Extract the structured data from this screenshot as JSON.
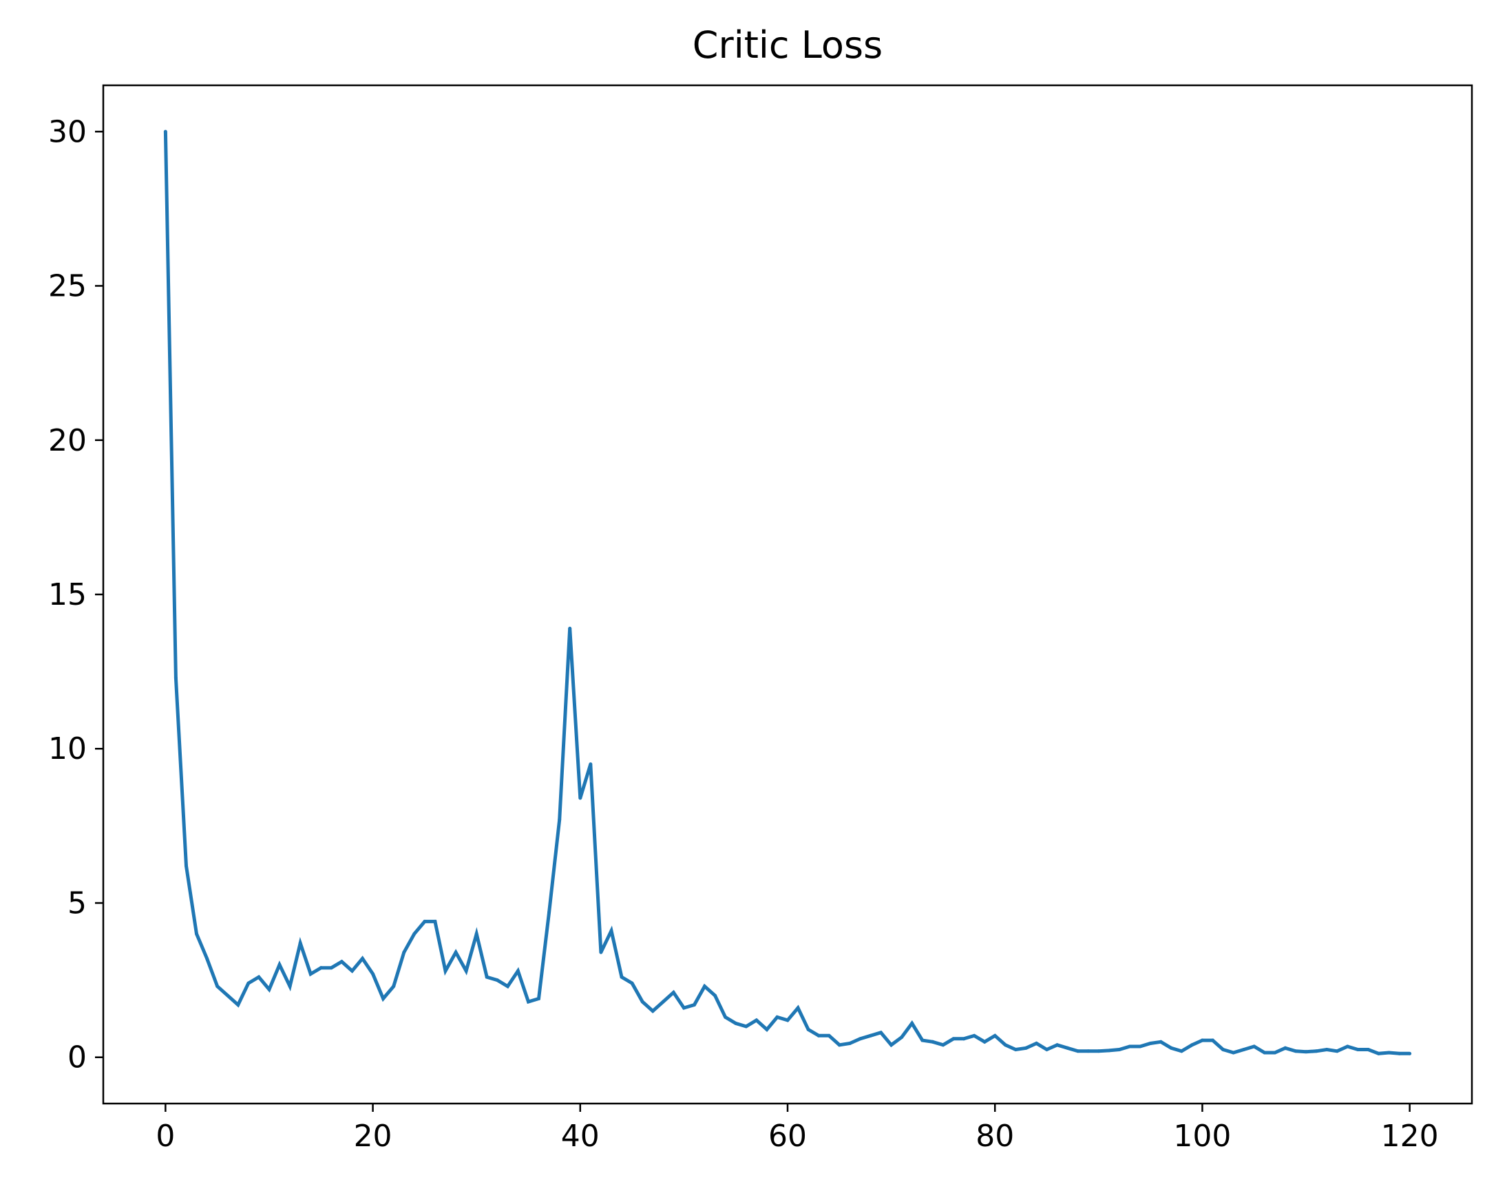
{
  "chart_data": {
    "type": "line",
    "title": "Critic Loss",
    "xlabel": "",
    "ylabel": "",
    "xlim": [
      -6,
      126
    ],
    "ylim": [
      -1.5,
      31.5
    ],
    "xticks": [
      0,
      20,
      40,
      60,
      80,
      100,
      120
    ],
    "yticks": [
      0,
      5,
      10,
      15,
      20,
      25,
      30
    ],
    "grid": false,
    "legend": "none",
    "series": [
      {
        "color": "#1f77b4",
        "x": [
          0,
          1,
          2,
          3,
          4,
          5,
          6,
          7,
          8,
          9,
          10,
          11,
          12,
          13,
          14,
          15,
          16,
          17,
          18,
          19,
          20,
          21,
          22,
          23,
          24,
          25,
          26,
          27,
          28,
          29,
          30,
          31,
          32,
          33,
          34,
          35,
          36,
          37,
          38,
          39,
          40,
          41,
          42,
          43,
          44,
          45,
          46,
          47,
          48,
          49,
          50,
          51,
          52,
          53,
          54,
          55,
          56,
          57,
          58,
          59,
          60,
          61,
          62,
          63,
          64,
          65,
          66,
          67,
          68,
          69,
          70,
          71,
          72,
          73,
          74,
          75,
          76,
          77,
          78,
          79,
          80,
          81,
          82,
          83,
          84,
          85,
          86,
          87,
          88,
          89,
          90,
          91,
          92,
          93,
          94,
          95,
          96,
          97,
          98,
          99,
          100,
          101,
          102,
          103,
          104,
          105,
          106,
          107,
          108,
          109,
          110,
          111,
          112,
          113,
          114,
          115,
          116,
          117,
          118,
          119,
          120
        ],
        "y": [
          30.0,
          12.3,
          6.2,
          4.0,
          3.2,
          2.3,
          2.0,
          1.7,
          2.4,
          2.6,
          2.2,
          3.0,
          2.3,
          3.7,
          2.7,
          2.9,
          2.9,
          3.1,
          2.8,
          3.2,
          2.7,
          1.9,
          2.3,
          3.4,
          4.0,
          4.4,
          4.4,
          2.8,
          3.4,
          2.8,
          4.0,
          2.6,
          2.5,
          2.3,
          2.8,
          1.8,
          1.9,
          4.7,
          7.7,
          13.9,
          8.4,
          9.5,
          3.4,
          4.1,
          2.6,
          2.4,
          1.8,
          1.5,
          1.8,
          2.1,
          1.6,
          1.7,
          2.3,
          2.0,
          1.3,
          1.1,
          1.0,
          1.2,
          0.9,
          1.3,
          1.2,
          1.6,
          0.9,
          0.7,
          0.7,
          0.4,
          0.45,
          0.6,
          0.7,
          0.8,
          0.4,
          0.65,
          1.1,
          0.55,
          0.5,
          0.4,
          0.6,
          0.6,
          0.7,
          0.5,
          0.7,
          0.4,
          0.25,
          0.3,
          0.45,
          0.25,
          0.4,
          0.3,
          0.2,
          0.2,
          0.2,
          0.22,
          0.25,
          0.35,
          0.35,
          0.45,
          0.5,
          0.3,
          0.2,
          0.4,
          0.55,
          0.55,
          0.25,
          0.15,
          0.25,
          0.35,
          0.15,
          0.15,
          0.3,
          0.2,
          0.18,
          0.2,
          0.25,
          0.2,
          0.35,
          0.25,
          0.25,
          0.12,
          0.15,
          0.12,
          0.12
        ]
      }
    ]
  }
}
